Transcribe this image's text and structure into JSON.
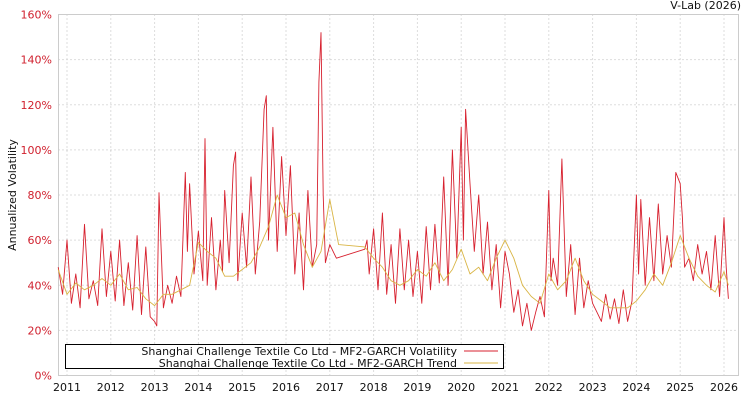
{
  "credit": "V-Lab (2026)",
  "chart_data": {
    "type": "line",
    "title": "",
    "xlabel": "",
    "ylabel": "Annualized Volatility",
    "ylim": [
      0,
      160
    ],
    "y_ticks": [
      "0%",
      "20%",
      "40%",
      "60%",
      "80%",
      "100%",
      "120%",
      "140%",
      "160%"
    ],
    "x_ticks": [
      "2011",
      "2012",
      "2013",
      "2014",
      "2015",
      "2016",
      "2017",
      "2018",
      "2019",
      "2020",
      "2021",
      "2022",
      "2023",
      "2024",
      "2025",
      "2026"
    ],
    "grid": true,
    "legend_position": "bottom-left inside",
    "colors": {
      "volatility": "#d7212f",
      "trend": "#d9b545"
    },
    "series": [
      {
        "name": "Shanghai Challenge Textile Co Ltd - MF2-GARCH Volatility",
        "x": [
          2010.8,
          2010.9,
          2011.0,
          2011.1,
          2011.2,
          2011.3,
          2011.4,
          2011.5,
          2011.6,
          2011.7,
          2011.8,
          2011.9,
          2012.0,
          2012.1,
          2012.2,
          2012.3,
          2012.4,
          2012.5,
          2012.6,
          2012.7,
          2012.8,
          2012.9,
          2013.0,
          2013.05,
          2013.1,
          2013.2,
          2013.3,
          2013.4,
          2013.5,
          2013.6,
          2013.7,
          2013.75,
          2013.8,
          2013.9,
          2014.0,
          2014.1,
          2014.15,
          2014.2,
          2014.3,
          2014.4,
          2014.5,
          2014.55,
          2014.6,
          2014.7,
          2014.8,
          2014.85,
          2014.9,
          2015.0,
          2015.1,
          2015.2,
          2015.3,
          2015.4,
          2015.5,
          2015.55,
          2015.6,
          2015.7,
          2015.8,
          2015.9,
          2016.0,
          2016.1,
          2016.2,
          2016.3,
          2016.4,
          2016.5,
          2016.6,
          2016.7,
          2016.75,
          2016.8,
          2016.85,
          2016.9,
          2017.0,
          2017.1,
          2017.15,
          2017.8,
          2017.85,
          2017.9,
          2018.0,
          2018.1,
          2018.2,
          2018.3,
          2018.4,
          2018.5,
          2018.6,
          2018.7,
          2018.8,
          2018.9,
          2019.0,
          2019.1,
          2019.2,
          2019.3,
          2019.4,
          2019.5,
          2019.6,
          2019.7,
          2019.8,
          2019.9,
          2020.0,
          2020.05,
          2020.1,
          2020.2,
          2020.3,
          2020.4,
          2020.5,
          2020.6,
          2020.7,
          2020.8,
          2020.9,
          2021.0,
          2021.05,
          2021.1,
          2021.2,
          2021.3,
          2021.4,
          2021.5,
          2021.6,
          2021.7,
          2021.8,
          2021.9,
          2022.0,
          2022.05,
          2022.1,
          2022.2,
          2022.3,
          2022.4,
          2022.5,
          2022.6,
          2022.7,
          2022.8,
          2022.9,
          2023.0,
          2023.1,
          2023.2,
          2023.3,
          2023.4,
          2023.5,
          2023.6,
          2023.7,
          2023.8,
          2023.9,
          2024.0,
          2024.05,
          2024.1,
          2024.2,
          2024.3,
          2024.4,
          2024.5,
          2024.6,
          2024.7,
          2024.8,
          2024.9,
          2025.0,
          2025.05,
          2025.1,
          2025.2,
          2025.3,
          2025.4,
          2025.5,
          2025.6,
          2025.7,
          2025.8,
          2025.9,
          2026.0,
          2026.05,
          2026.1
        ],
        "values": [
          48,
          36,
          60,
          32,
          45,
          30,
          67,
          34,
          42,
          31,
          65,
          35,
          55,
          33,
          60,
          31,
          50,
          29,
          62,
          27,
          57,
          26,
          24,
          22,
          81,
          30,
          40,
          32,
          44,
          35,
          90,
          55,
          85,
          45,
          64,
          42,
          105,
          40,
          70,
          38,
          60,
          46,
          82,
          50,
          93,
          99,
          42,
          72,
          48,
          88,
          45,
          68,
          118,
          124,
          60,
          110,
          55,
          97,
          62,
          93,
          45,
          72,
          38,
          82,
          48,
          58,
          130,
          152,
          80,
          50,
          58,
          54,
          52,
          56,
          60,
          45,
          65,
          38,
          72,
          36,
          58,
          32,
          65,
          38,
          60,
          35,
          55,
          32,
          66,
          38,
          67,
          41,
          88,
          40,
          100,
          52,
          110,
          60,
          118,
          85,
          55,
          80,
          45,
          68,
          38,
          58,
          30,
          55,
          50,
          45,
          28,
          38,
          22,
          32,
          20,
          28,
          35,
          26,
          82,
          42,
          52,
          40,
          96,
          35,
          58,
          27,
          52,
          30,
          42,
          32,
          28,
          24,
          36,
          25,
          34,
          23,
          38,
          24,
          33,
          80,
          45,
          78,
          40,
          70,
          42,
          76,
          45,
          62,
          48,
          90,
          85,
          70,
          48,
          52,
          42,
          58,
          45,
          55,
          38,
          62,
          35,
          70,
          48,
          34
        ],
        "x_ref_note": "values read off gridlines; approximate peaks/troughs"
      },
      {
        "name": "Shanghai Challenge Textile Co Ltd - MF2-GARCH Trend",
        "x": [
          2010.8,
          2011.0,
          2011.2,
          2011.4,
          2011.6,
          2011.8,
          2012.0,
          2012.2,
          2012.4,
          2012.6,
          2012.8,
          2013.0,
          2013.2,
          2013.4,
          2013.6,
          2013.8,
          2014.0,
          2014.2,
          2014.4,
          2014.6,
          2014.8,
          2015.0,
          2015.2,
          2015.4,
          2015.6,
          2015.8,
          2016.0,
          2016.2,
          2016.4,
          2016.6,
          2016.8,
          2017.0,
          2017.2,
          2017.8,
          2018.0,
          2018.2,
          2018.4,
          2018.6,
          2018.8,
          2019.0,
          2019.2,
          2019.4,
          2019.6,
          2019.8,
          2020.0,
          2020.2,
          2020.4,
          2020.6,
          2020.8,
          2021.0,
          2021.2,
          2021.4,
          2021.6,
          2021.8,
          2022.0,
          2022.2,
          2022.4,
          2022.6,
          2022.8,
          2023.0,
          2023.2,
          2023.4,
          2023.6,
          2023.8,
          2024.0,
          2024.2,
          2024.4,
          2024.6,
          2024.8,
          2025.0,
          2025.2,
          2025.4,
          2025.6,
          2025.8,
          2026.0,
          2026.1
        ],
        "values": [
          47,
          36,
          41,
          38,
          40,
          43,
          40,
          45,
          38,
          39,
          34,
          31,
          36,
          36,
          38,
          40,
          59,
          55,
          52,
          44,
          44,
          47,
          50,
          57,
          66,
          80,
          70,
          72,
          58,
          48,
          55,
          78,
          58,
          57,
          52,
          48,
          42,
          40,
          42,
          47,
          44,
          50,
          42,
          47,
          56,
          45,
          48,
          42,
          52,
          60,
          52,
          40,
          35,
          32,
          45,
          38,
          42,
          52,
          42,
          36,
          33,
          30,
          30,
          30,
          33,
          38,
          45,
          40,
          50,
          62,
          52,
          44,
          40,
          37,
          46,
          40
        ]
      }
    ]
  },
  "legend": {
    "items": [
      {
        "label": "Shanghai Challenge Textile Co Ltd - MF2-GARCH Volatility",
        "color": "#d7212f"
      },
      {
        "label": "Shanghai Challenge Textile Co Ltd - MF2-GARCH Trend",
        "color": "#d9b545"
      }
    ]
  }
}
